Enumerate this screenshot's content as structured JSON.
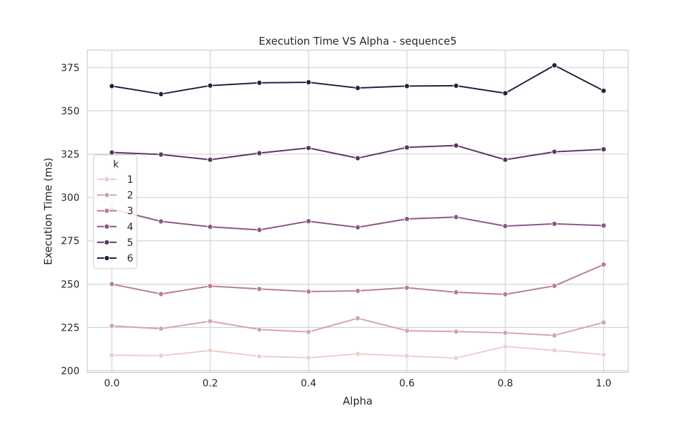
{
  "chart_data": {
    "type": "line",
    "title": "Execution Time VS Alpha - sequence5",
    "xlabel": "Alpha",
    "ylabel": "Execution Time (ms)",
    "xlim": [
      -0.05,
      1.05
    ],
    "ylim": [
      199,
      385
    ],
    "xticks": [
      0.0,
      0.2,
      0.4,
      0.6,
      0.8,
      1.0
    ],
    "xtick_labels": [
      "0.0",
      "0.2",
      "0.4",
      "0.6",
      "0.8",
      "1.0"
    ],
    "yticks": [
      200,
      225,
      250,
      275,
      300,
      325,
      350,
      375
    ],
    "ytick_labels": [
      "200",
      "225",
      "250",
      "275",
      "300",
      "325",
      "350",
      "375"
    ],
    "grid": true,
    "legend": {
      "title": "k",
      "placement": "center-left"
    },
    "x": [
      0.0,
      0.1,
      0.2,
      0.3,
      0.4,
      0.5,
      0.6,
      0.7,
      0.8,
      0.9,
      1.0
    ],
    "series": [
      {
        "name": "1",
        "color": "#ebcfc8",
        "values": [
          209,
          208.7,
          211.7,
          208.3,
          207.5,
          209.7,
          208.5,
          207.3,
          214,
          211.8,
          209.3
        ]
      },
      {
        "name": "2",
        "color": "#d7a3ad",
        "values": [
          225.9,
          224.3,
          228.6,
          223.8,
          222.4,
          230.3,
          223.1,
          222.6,
          221.9,
          220.4,
          227.9
        ]
      },
      {
        "name": "3",
        "color": "#bb7c96",
        "values": [
          250,
          244.3,
          248.9,
          247.2,
          245.7,
          246.1,
          247.9,
          245.3,
          244.1,
          249,
          261.3
        ]
      },
      {
        "name": "4",
        "color": "#8f5585",
        "values": [
          293.3,
          286.2,
          283.1,
          281.3,
          286.3,
          282.8,
          287.6,
          288.7,
          283.5,
          284.8,
          283.8
        ]
      },
      {
        "name": "5",
        "color": "#5b3666",
        "values": [
          326,
          324.8,
          321.8,
          325.6,
          328.6,
          322.7,
          328.9,
          330,
          321.8,
          326.4,
          327.8
        ]
      },
      {
        "name": "6",
        "color": "#2b1c3c",
        "values": [
          364.3,
          359.7,
          364.6,
          366.2,
          366.5,
          363.2,
          364.3,
          364.5,
          360.2,
          376.3,
          361.6
        ]
      }
    ]
  }
}
